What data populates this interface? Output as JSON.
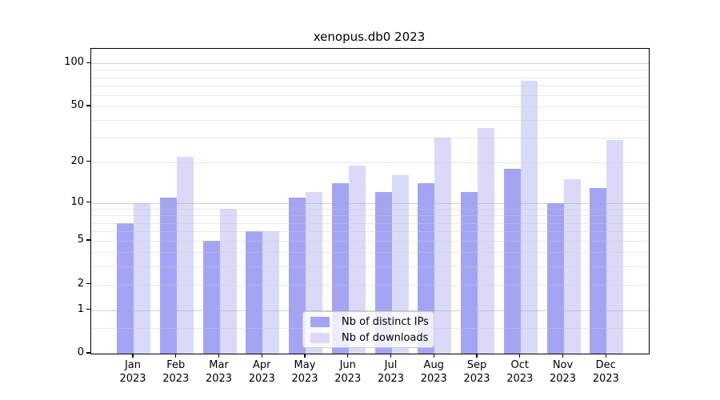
{
  "title": "xenopus.db0 2023",
  "chart_data": {
    "type": "bar",
    "title": "xenopus.db0 2023",
    "categories": [
      "Jan",
      "Feb",
      "Mar",
      "Apr",
      "May",
      "Jun",
      "Jul",
      "Aug",
      "Sep",
      "Oct",
      "Nov",
      "Dec"
    ],
    "year": "2023",
    "series": [
      {
        "name": "Nb of distinct IPs",
        "color": "#a4a4f4",
        "values": [
          7,
          11,
          5,
          6,
          11,
          14,
          12,
          14,
          12,
          18,
          10,
          13
        ]
      },
      {
        "name": "Nb of downloads",
        "color": "#dadaf8",
        "values": [
          10,
          22,
          9,
          6,
          12,
          19,
          16,
          30,
          35,
          76,
          15,
          29
        ]
      }
    ],
    "y_scale": "log10(1+x)",
    "y_ticks": [
      0,
      1,
      2,
      5,
      10,
      20,
      50,
      100
    ],
    "y_major_gridlines": [
      1,
      10,
      100
    ],
    "y_minor_gridlines": [
      0.5,
      2,
      3,
      4,
      5,
      6,
      7,
      8,
      9,
      20,
      30,
      40,
      50,
      60,
      70,
      80,
      90
    ],
    "ylim": [
      0,
      110
    ],
    "grid": true,
    "legend_position": "lower center",
    "xlabel": "",
    "ylabel": ""
  },
  "legend": {
    "items": [
      {
        "label": "Nb of distinct IPs"
      },
      {
        "label": "Nb of downloads"
      }
    ]
  },
  "colors": {
    "bar_distinct_ips": "#a4a4f4",
    "bar_downloads": "#dadaf8",
    "grid_major": "#c9c9c9",
    "grid_minor": "#e6e6e6",
    "axis": "#000000",
    "legend_border": "#cccccc",
    "background": "#ffffff"
  }
}
